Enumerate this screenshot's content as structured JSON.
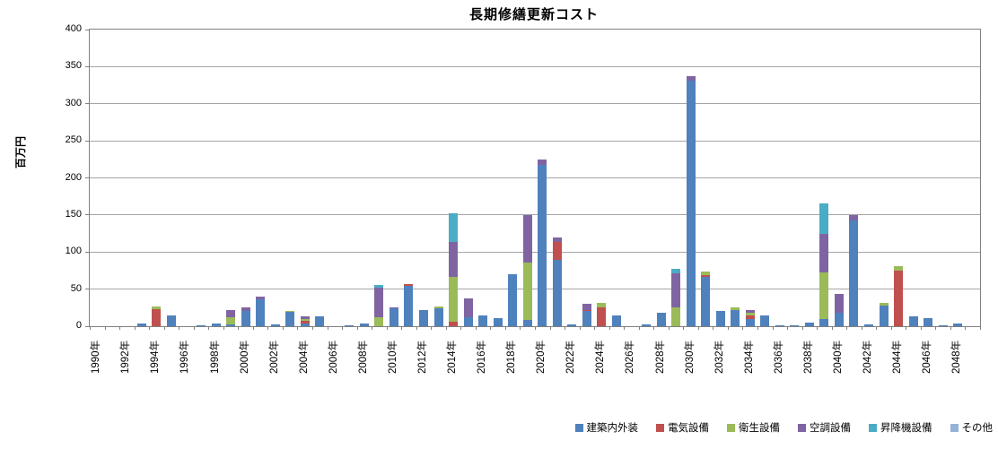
{
  "title": "長期修繕更新コスト",
  "y_axis": {
    "label": "百万円",
    "tick_labels": [
      "0",
      "50",
      "100",
      "150",
      "200",
      "250",
      "300",
      "350",
      "400"
    ]
  },
  "x_axis": {
    "tick_labels": [
      "1990年",
      "1992年",
      "1994年",
      "1996年",
      "1998年",
      "2000年",
      "2002年",
      "2004年",
      "2006年",
      "2008年",
      "2010年",
      "2012年",
      "2014年",
      "2016年",
      "2018年",
      "2020年",
      "2022年",
      "2024年",
      "2026年",
      "2028年",
      "2030年",
      "2032年",
      "2034年",
      "2036年",
      "2038年",
      "2040年",
      "2042年",
      "2044年",
      "2046年",
      "2048年"
    ]
  },
  "legend": [
    {
      "label": "建築内外装",
      "color": "#4F81BD"
    },
    {
      "label": "電気設備",
      "color": "#C0504D"
    },
    {
      "label": "衛生設備",
      "color": "#9BBB59"
    },
    {
      "label": "空調設備",
      "color": "#8064A2"
    },
    {
      "label": "昇降機設備",
      "color": "#4BACC6"
    },
    {
      "label": "その他",
      "color": "#95B3D7"
    }
  ],
  "chart_data": {
    "type": "bar",
    "stacked": true,
    "title": "長期修繕更新コスト",
    "ylabel": "百万円",
    "ylim": [
      0,
      400
    ],
    "y_tick_step": 50,
    "grid": true,
    "legend_position": "bottom-right",
    "categories": [
      1990,
      1991,
      1992,
      1993,
      1994,
      1995,
      1996,
      1997,
      1998,
      1999,
      2000,
      2001,
      2002,
      2003,
      2004,
      2005,
      2006,
      2007,
      2008,
      2009,
      2010,
      2011,
      2012,
      2013,
      2014,
      2015,
      2016,
      2017,
      2018,
      2019,
      2020,
      2021,
      2022,
      2023,
      2024,
      2025,
      2026,
      2027,
      2028,
      2029,
      2030,
      2031,
      2032,
      2033,
      2034,
      2035,
      2036,
      2037,
      2038,
      2039,
      2040,
      2041,
      2042,
      2043,
      2044,
      2045,
      2046,
      2047,
      2048,
      2049
    ],
    "category_label_suffix": "年",
    "category_label_interval": 2,
    "series": [
      {
        "name": "建築内外装",
        "color": "#4F81BD",
        "values": [
          0,
          0,
          0,
          4,
          0,
          14,
          0,
          1,
          4,
          2,
          21,
          36,
          2,
          19,
          4,
          13,
          0,
          1,
          4,
          0,
          24,
          55,
          22,
          24,
          0,
          12,
          14,
          11,
          70,
          8,
          218,
          90,
          2,
          20,
          0,
          14,
          0,
          2,
          18,
          0,
          331,
          67,
          21,
          22,
          10,
          15,
          1,
          1,
          5,
          10,
          18,
          143,
          2,
          28,
          0,
          13,
          11,
          1,
          4,
          0
        ]
      },
      {
        "name": "電気設備",
        "color": "#C0504D",
        "values": [
          0,
          0,
          0,
          0,
          23,
          0,
          0,
          0,
          0,
          0,
          0,
          0,
          0,
          0,
          3,
          0,
          0,
          0,
          0,
          0,
          0,
          2,
          0,
          0,
          6,
          0,
          0,
          0,
          0,
          0,
          0,
          24,
          0,
          2,
          25,
          0,
          0,
          0,
          0,
          0,
          0,
          2,
          0,
          0,
          5,
          0,
          0,
          0,
          0,
          0,
          0,
          0,
          0,
          0,
          75,
          0,
          0,
          0,
          0,
          0
        ]
      },
      {
        "name": "衛生設備",
        "color": "#9BBB59",
        "values": [
          0,
          0,
          0,
          0,
          4,
          0,
          0,
          0,
          0,
          10,
          0,
          0,
          0,
          2,
          3,
          0,
          0,
          0,
          0,
          12,
          0,
          0,
          0,
          3,
          61,
          0,
          0,
          0,
          0,
          78,
          0,
          0,
          0,
          0,
          6,
          0,
          0,
          0,
          0,
          26,
          0,
          5,
          0,
          3,
          3,
          0,
          0,
          0,
          0,
          63,
          0,
          0,
          0,
          3,
          6,
          0,
          0,
          0,
          0,
          0
        ]
      },
      {
        "name": "空調設備",
        "color": "#8064A2",
        "values": [
          0,
          0,
          0,
          0,
          0,
          0,
          0,
          0,
          0,
          10,
          4,
          4,
          0,
          0,
          3,
          0,
          0,
          0,
          0,
          40,
          2,
          0,
          0,
          0,
          47,
          26,
          0,
          0,
          0,
          64,
          7,
          6,
          0,
          8,
          0,
          0,
          0,
          0,
          0,
          45,
          6,
          0,
          0,
          0,
          4,
          0,
          0,
          0,
          0,
          52,
          26,
          7,
          0,
          0,
          0,
          0,
          0,
          0,
          0,
          0
        ]
      },
      {
        "name": "昇降機設備",
        "color": "#4BACC6",
        "values": [
          0,
          0,
          0,
          0,
          0,
          0,
          0,
          0,
          0,
          0,
          0,
          0,
          0,
          0,
          0,
          0,
          0,
          0,
          0,
          4,
          0,
          0,
          0,
          0,
          38,
          0,
          0,
          0,
          0,
          0,
          0,
          0,
          0,
          0,
          0,
          0,
          0,
          0,
          0,
          6,
          0,
          0,
          0,
          0,
          0,
          0,
          0,
          0,
          0,
          41,
          0,
          0,
          0,
          0,
          0,
          0,
          0,
          0,
          0,
          0
        ]
      },
      {
        "name": "その他",
        "color": "#95B3D7",
        "values": [
          0,
          0,
          0,
          0,
          0,
          0,
          0,
          0,
          0,
          0,
          0,
          0,
          0,
          0,
          0,
          0,
          0,
          0,
          0,
          0,
          0,
          0,
          0,
          0,
          0,
          0,
          0,
          0,
          0,
          0,
          0,
          0,
          0,
          0,
          0,
          0,
          0,
          0,
          0,
          0,
          0,
          0,
          0,
          0,
          0,
          0,
          0,
          0,
          0,
          0,
          0,
          0,
          0,
          0,
          0,
          0,
          0,
          0,
          0,
          0
        ]
      }
    ]
  }
}
